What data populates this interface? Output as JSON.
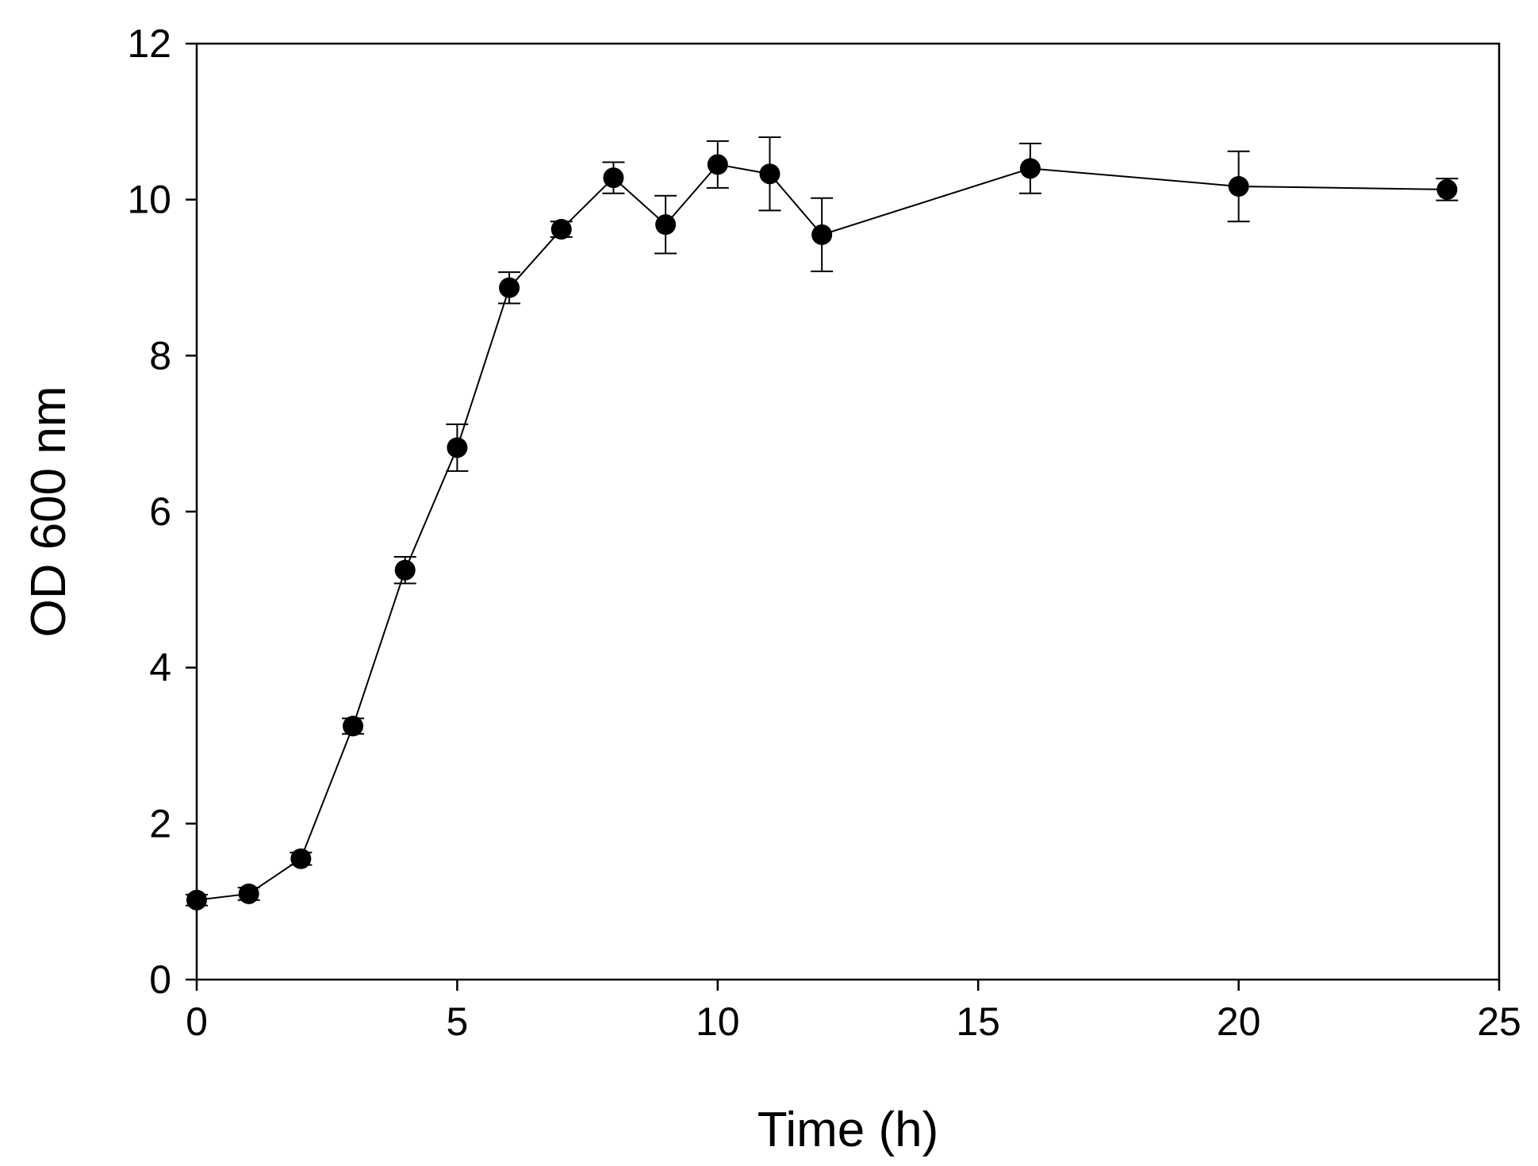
{
  "chart_data": {
    "type": "line",
    "title": "",
    "xlabel": "Time (h)",
    "ylabel": "OD 600 nm",
    "xlim": [
      0,
      25
    ],
    "ylim": [
      0,
      12
    ],
    "xticks": [
      0,
      5,
      10,
      15,
      20,
      25
    ],
    "yticks": [
      0,
      2,
      4,
      6,
      8,
      10,
      12
    ],
    "xtick_labels": [
      "0",
      "5",
      "10",
      "15",
      "20",
      "25"
    ],
    "ytick_labels": [
      "0",
      "2",
      "4",
      "6",
      "8",
      "10",
      "12"
    ],
    "grid": false,
    "legend": null,
    "marker": "filled-circle",
    "line_color": "#000000",
    "series": [
      {
        "name": "OD 600 nm",
        "x": [
          0,
          1,
          2,
          3,
          4,
          5,
          6,
          7,
          8,
          9,
          10,
          11,
          12,
          16,
          20,
          24
        ],
        "y": [
          1.02,
          1.1,
          1.55,
          3.25,
          5.25,
          6.82,
          8.87,
          9.62,
          10.28,
          9.68,
          10.45,
          10.33,
          9.55,
          10.4,
          10.17,
          10.13
        ],
        "err": [
          0.07,
          0.08,
          0.08,
          0.1,
          0.17,
          0.3,
          0.2,
          0.1,
          0.2,
          0.37,
          0.3,
          0.47,
          0.47,
          0.32,
          0.45,
          0.14
        ]
      }
    ]
  }
}
